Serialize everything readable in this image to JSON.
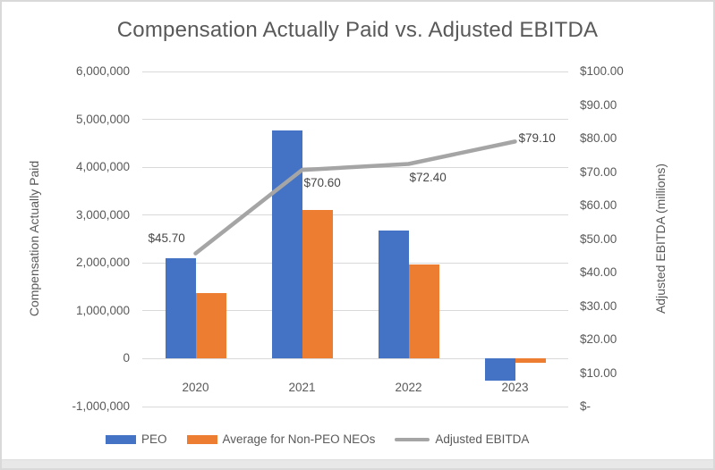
{
  "title": "Compensation Actually Paid vs. Adjusted EBITDA",
  "chart_data": {
    "type": "combo-bar-line",
    "title": "Compensation Actually Paid vs. Adjusted EBITDA",
    "categories": [
      "2020",
      "2021",
      "2022",
      "2023"
    ],
    "series": [
      {
        "name": "PEO",
        "type": "bar",
        "axis": "left",
        "color": "#4472C4",
        "values": [
          2100000,
          4760000,
          2680000,
          -450000
        ]
      },
      {
        "name": "Average for Non-PEO NEOs",
        "type": "bar",
        "axis": "left",
        "color": "#ED7D31",
        "values": [
          1370000,
          3100000,
          1960000,
          -80000
        ]
      },
      {
        "name": "Adjusted EBITDA",
        "type": "line",
        "axis": "right",
        "color": "#A5A5A5",
        "values": [
          45.7,
          70.6,
          72.4,
          79.1
        ],
        "point_labels": [
          "$45.70",
          "$70.60",
          "$72.40",
          "$79.10"
        ]
      }
    ],
    "left_axis": {
      "title": "Compensation Actually Paid",
      "min": -1000000,
      "max": 6000000,
      "step": 1000000,
      "tick_labels": [
        "6,000,000",
        "5,000,000",
        "4,000,000",
        "3,000,000",
        "2,000,000",
        "1,000,000",
        "0",
        "-1,000,000"
      ]
    },
    "right_axis": {
      "title": "Adjusted EBITDA (millions)",
      "min": 0,
      "max": 100,
      "step": 10,
      "tick_labels": [
        "$100.00",
        "$90.00",
        "$80.00",
        "$70.00",
        "$60.00",
        "$50.00",
        "$40.00",
        "$30.00",
        "$20.00",
        "$10.00",
        "$-"
      ]
    },
    "legend": {
      "position": "bottom",
      "entries": [
        "PEO",
        "Average for Non-PEO NEOs",
        "Adjusted EBITDA"
      ]
    },
    "grid": "horizontal",
    "colors": {
      "grid": "#D9D9D9",
      "axis_text": "#595959",
      "data_label_text": "#474747",
      "background": "#FFFFFF",
      "footer_strip": "#E8E8E8"
    }
  }
}
